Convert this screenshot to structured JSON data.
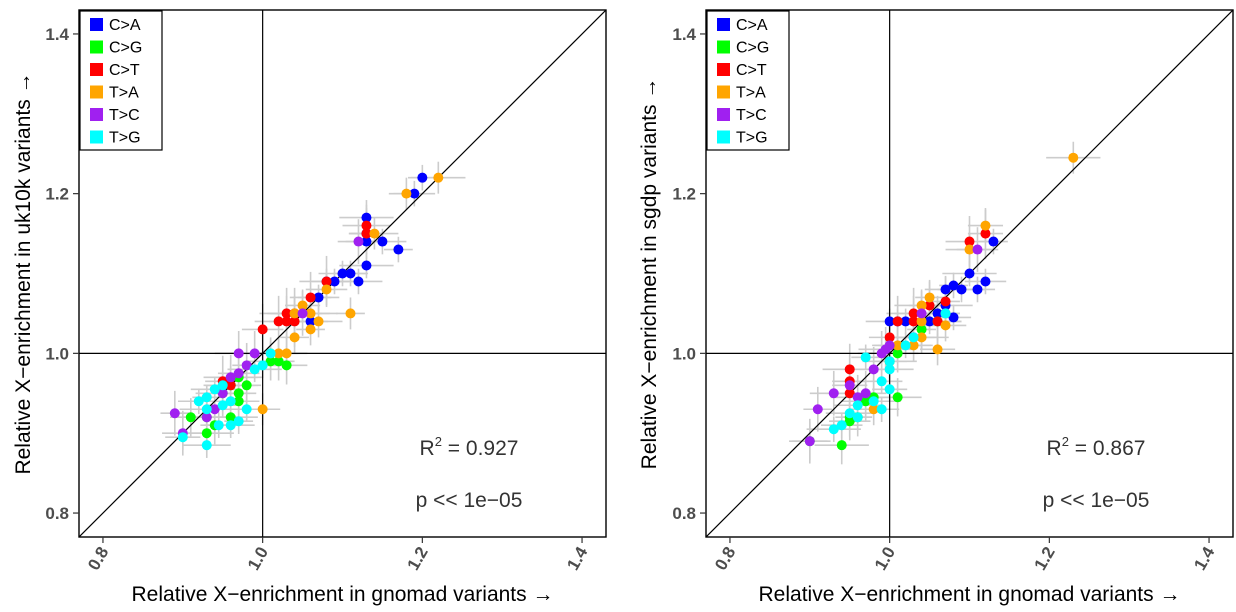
{
  "chart_data": [
    {
      "type": "scatter",
      "xlabel": "Relative X−enrichment in gnomad variants →",
      "ylabel": "Relative X−enrichment in uk10k variants →",
      "xlim": [
        0.77,
        1.43
      ],
      "ylim": [
        0.77,
        1.43
      ],
      "xticks": [
        "0.8",
        "1.0",
        "1.2",
        "1.4"
      ],
      "yticks": [
        "0.8",
        "1.0",
        "1.2",
        "1.4"
      ],
      "reference_lines": {
        "identity": true,
        "x": 1.0,
        "y": 1.0
      },
      "legend_position": "top-left",
      "annotation": {
        "r2_prefix": "R",
        "r2_exp": "2",
        "r2_value": " = 0.927",
        "p_text": "p << 1e−05"
      },
      "series": [
        {
          "name": "C>A",
          "color": "#0000ff",
          "points": [
            [
              1.2,
              1.22
            ],
            [
              1.19,
              1.2
            ],
            [
              1.13,
              1.17
            ],
            [
              1.13,
              1.15
            ],
            [
              1.15,
              1.14
            ],
            [
              1.17,
              1.13
            ],
            [
              1.13,
              1.14
            ],
            [
              1.13,
              1.11
            ],
            [
              1.11,
              1.1
            ],
            [
              1.1,
              1.1
            ],
            [
              1.09,
              1.09
            ],
            [
              1.07,
              1.07
            ],
            [
              1.08,
              1.09
            ],
            [
              1.06,
              1.04
            ],
            [
              1.12,
              1.09
            ]
          ]
        },
        {
          "name": "C>G",
          "color": "#00ff00",
          "points": [
            [
              0.97,
              0.97
            ],
            [
              0.98,
              0.96
            ],
            [
              0.97,
              0.94
            ],
            [
              0.96,
              0.96
            ],
            [
              0.95,
              0.95
            ],
            [
              0.93,
              0.92
            ],
            [
              0.94,
              0.91
            ],
            [
              0.91,
              0.92
            ],
            [
              0.93,
              0.9
            ],
            [
              0.97,
              0.95
            ],
            [
              1.01,
              0.99
            ],
            [
              1.02,
              0.99
            ],
            [
              1.03,
              0.985
            ],
            [
              0.96,
              0.92
            ]
          ]
        },
        {
          "name": "C>T",
          "color": "#ff0000",
          "points": [
            [
              1.13,
              1.15
            ],
            [
              1.13,
              1.16
            ],
            [
              1.08,
              1.09
            ],
            [
              1.06,
              1.07
            ],
            [
              1.04,
              1.05
            ],
            [
              1.03,
              1.04
            ],
            [
              1.02,
              1.04
            ],
            [
              1.04,
              1.04
            ],
            [
              1.0,
              1.03
            ],
            [
              1.03,
              1.05
            ],
            [
              0.95,
              0.965
            ],
            [
              0.96,
              0.96
            ]
          ]
        },
        {
          "name": "T>A",
          "color": "#ffa500",
          "points": [
            [
              1.22,
              1.22
            ],
            [
              1.18,
              1.2
            ],
            [
              1.14,
              1.15
            ],
            [
              1.11,
              1.05
            ],
            [
              1.08,
              1.08
            ],
            [
              1.06,
              1.05
            ],
            [
              1.05,
              1.06
            ],
            [
              1.04,
              1.05
            ],
            [
              1.04,
              1.02
            ],
            [
              1.03,
              1.0
            ],
            [
              1.01,
              1.0
            ],
            [
              1.0,
              0.93
            ],
            [
              1.07,
              1.04
            ],
            [
              1.06,
              1.03
            ],
            [
              1.02,
              1.0
            ]
          ]
        },
        {
          "name": "T>C",
          "color": "#a020f0",
          "points": [
            [
              1.12,
              1.14
            ],
            [
              1.05,
              1.05
            ],
            [
              0.99,
              1.0
            ],
            [
              0.97,
              1.0
            ],
            [
              0.98,
              0.985
            ],
            [
              0.97,
              0.975
            ],
            [
              0.95,
              0.95
            ],
            [
              0.94,
              0.93
            ],
            [
              0.93,
              0.92
            ],
            [
              0.89,
              0.925
            ],
            [
              0.9,
              0.9
            ],
            [
              0.96,
              0.97
            ]
          ]
        },
        {
          "name": "T>G",
          "color": "#00ffff",
          "points": [
            [
              1.01,
              1.0
            ],
            [
              1.0,
              0.985
            ],
            [
              0.99,
              0.98
            ],
            [
              0.95,
              0.96
            ],
            [
              0.94,
              0.955
            ],
            [
              0.93,
              0.945
            ],
            [
              0.92,
              0.94
            ],
            [
              0.93,
              0.93
            ],
            [
              0.95,
              0.935
            ],
            [
              0.96,
              0.91
            ],
            [
              0.97,
              0.915
            ],
            [
              0.98,
              0.93
            ],
            [
              0.96,
              0.94
            ],
            [
              0.9,
              0.895
            ],
            [
              0.93,
              0.885
            ],
            [
              0.945,
              0.91
            ]
          ]
        }
      ]
    },
    {
      "type": "scatter",
      "xlabel": "Relative X−enrichment in gnomad variants →",
      "ylabel": "Relative X−enrichment in sgdp variants →",
      "xlim": [
        0.77,
        1.43
      ],
      "ylim": [
        0.77,
        1.43
      ],
      "xticks": [
        "0.8",
        "1.0",
        "1.2",
        "1.4"
      ],
      "yticks": [
        "0.8",
        "1.0",
        "1.2",
        "1.4"
      ],
      "reference_lines": {
        "identity": true,
        "x": 1.0,
        "y": 1.0
      },
      "legend_position": "top-left",
      "annotation": {
        "r2_prefix": "R",
        "r2_exp": "2",
        "r2_value": " = 0.867",
        "p_text": "p << 1e−05"
      },
      "series": [
        {
          "name": "C>A",
          "color": "#0000ff",
          "points": [
            [
              1.13,
              1.14
            ],
            [
              1.12,
              1.09
            ],
            [
              1.1,
              1.1
            ],
            [
              1.11,
              1.08
            ],
            [
              1.09,
              1.08
            ],
            [
              1.08,
              1.085
            ],
            [
              1.07,
              1.08
            ],
            [
              1.07,
              1.06
            ],
            [
              1.06,
              1.05
            ],
            [
              1.0,
              1.04
            ],
            [
              1.01,
              1.04
            ],
            [
              1.02,
              1.04
            ],
            [
              1.05,
              1.04
            ],
            [
              1.08,
              1.045
            ],
            [
              1.03,
              1.02
            ]
          ]
        },
        {
          "name": "C>G",
          "color": "#00ff00",
          "points": [
            [
              1.06,
              1.04
            ],
            [
              1.04,
              1.03
            ],
            [
              1.01,
              1.0
            ],
            [
              1.0,
              0.99
            ],
            [
              0.98,
              0.945
            ],
            [
              0.97,
              0.94
            ],
            [
              0.96,
              0.92
            ],
            [
              0.95,
              0.915
            ],
            [
              0.94,
              0.885
            ],
            [
              0.9,
              0.89
            ],
            [
              1.01,
              0.945
            ],
            [
              0.95,
              0.92
            ]
          ]
        },
        {
          "name": "C>T",
          "color": "#ff0000",
          "points": [
            [
              1.12,
              1.15
            ],
            [
              1.1,
              1.14
            ],
            [
              1.07,
              1.065
            ],
            [
              1.05,
              1.06
            ],
            [
              1.03,
              1.05
            ],
            [
              1.03,
              1.04
            ],
            [
              1.06,
              1.04
            ],
            [
              1.01,
              1.04
            ],
            [
              1.0,
              1.02
            ],
            [
              0.95,
              0.98
            ],
            [
              0.95,
              0.965
            ],
            [
              0.95,
              0.95
            ]
          ]
        },
        {
          "name": "T>A",
          "color": "#ffa500",
          "points": [
            [
              1.23,
              1.245
            ],
            [
              1.12,
              1.16
            ],
            [
              1.1,
              1.13
            ],
            [
              1.05,
              1.07
            ],
            [
              1.04,
              1.04
            ],
            [
              1.04,
              1.02
            ],
            [
              1.03,
              1.01
            ],
            [
              1.01,
              1.01
            ],
            [
              1.07,
              1.05
            ],
            [
              1.07,
              1.035
            ],
            [
              1.04,
              1.06
            ],
            [
              1.06,
              1.005
            ],
            [
              0.98,
              0.93
            ]
          ]
        },
        {
          "name": "T>C",
          "color": "#a020f0",
          "points": [
            [
              1.11,
              1.13
            ],
            [
              1.04,
              1.05
            ],
            [
              1.0,
              1.01
            ],
            [
              0.99,
              1.0
            ],
            [
              0.98,
              0.98
            ],
            [
              0.97,
              0.95
            ],
            [
              0.96,
              0.945
            ],
            [
              0.95,
              0.96
            ],
            [
              0.93,
              0.95
            ],
            [
              0.91,
              0.93
            ],
            [
              0.9,
              0.89
            ],
            [
              0.995,
              1.005
            ]
          ]
        },
        {
          "name": "T>G",
          "color": "#00ffff",
          "points": [
            [
              1.07,
              1.05
            ],
            [
              1.03,
              1.02
            ],
            [
              1.02,
              1.01
            ],
            [
              1.0,
              0.99
            ],
            [
              1.0,
              0.98
            ],
            [
              0.97,
              0.995
            ],
            [
              0.99,
              0.965
            ],
            [
              0.98,
              0.94
            ],
            [
              0.99,
              0.93
            ],
            [
              0.96,
              0.935
            ],
            [
              0.96,
              0.92
            ],
            [
              0.94,
              0.91
            ],
            [
              0.93,
              0.905
            ],
            [
              1.0,
              0.955
            ],
            [
              0.95,
              0.925
            ]
          ]
        }
      ]
    }
  ]
}
